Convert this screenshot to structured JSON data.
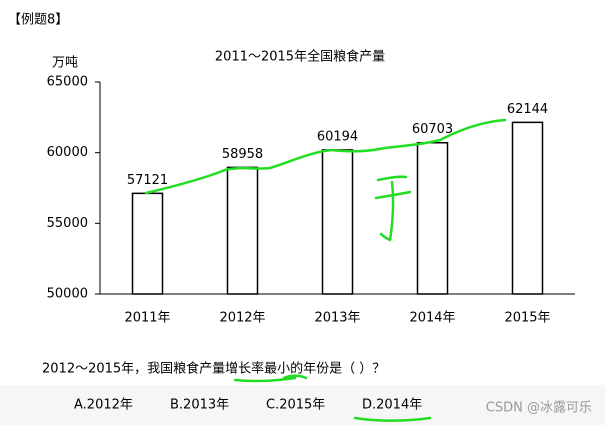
{
  "header": {
    "title": "【例题8】"
  },
  "chart_data": {
    "type": "bar",
    "title": "2011～2015年全国粮食产量",
    "y_label": "万吨",
    "categories": [
      "2011年",
      "2012年",
      "2013年",
      "2014年",
      "2015年"
    ],
    "values": [
      57121,
      58958,
      60194,
      60703,
      62144
    ],
    "color": "#ffffff",
    "edge_color": "#000000",
    "ylim": [
      50000,
      65000
    ],
    "yticks": [
      50000,
      55000,
      60000,
      65000
    ],
    "grid": false
  },
  "question": {
    "text": "2012～2015年，我国粮食产量增长率最小的年份是（ ）？",
    "options": [
      "A.2012年",
      "B.2013年",
      "C.2015年",
      "D.2014年"
    ]
  },
  "watermark": "CSDN @冰露可乐"
}
